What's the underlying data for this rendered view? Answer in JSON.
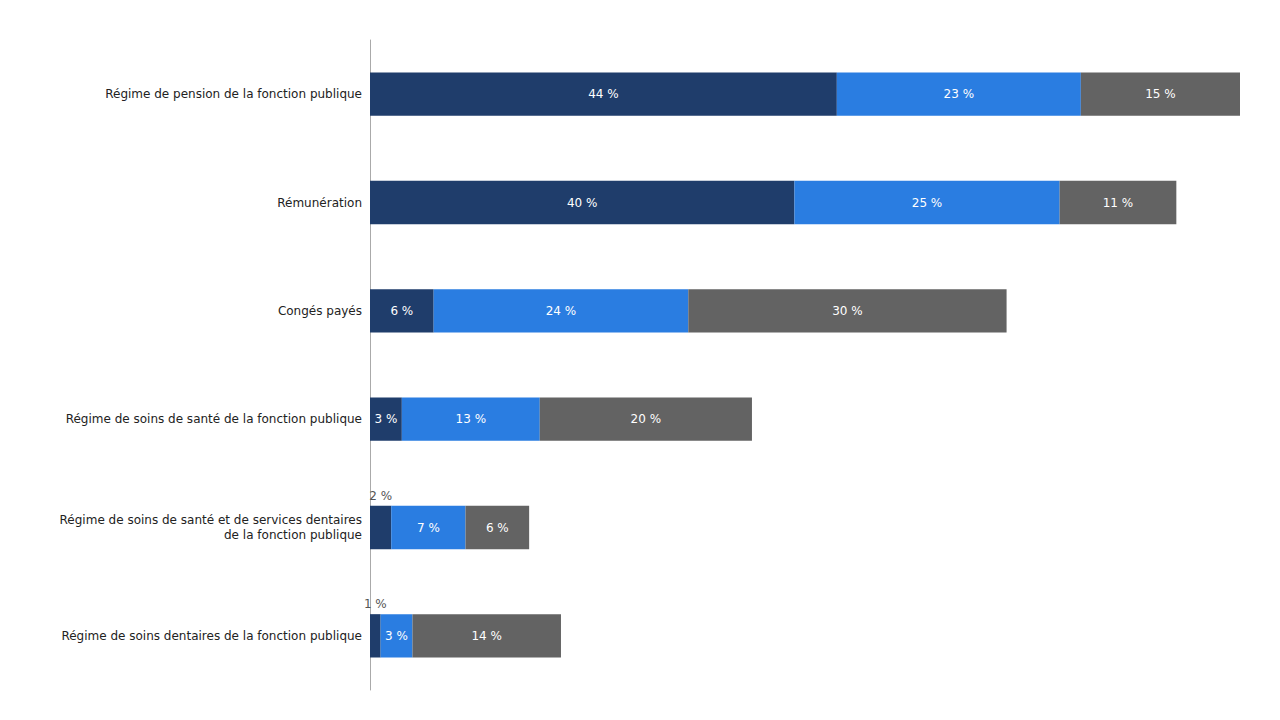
{
  "chart_data": {
    "type": "bar",
    "orientation": "horizontal",
    "stacked": true,
    "categories": [
      "Régime de pension de la fonction publique",
      "Rémunération",
      "Congés payés",
      "Régime de soins de santé de la fonction publique",
      "Régime de soins de santé et de services dentaires\nde la fonction publique",
      "Régime de soins dentaires de la fonction publique"
    ],
    "series": [
      {
        "color": "#1f3d6b",
        "values": [
          44,
          40,
          6,
          3,
          2,
          1
        ],
        "value_labels": [
          "44 %",
          "40 %",
          "6 %",
          "3 %",
          "2 %",
          "1 %"
        ]
      },
      {
        "color": "#2a7de1",
        "values": [
          23,
          25,
          24,
          13,
          7,
          3
        ],
        "value_labels": [
          "23 %",
          "25 %",
          "24 %",
          "13 %",
          "7 %",
          "3 %"
        ]
      },
      {
        "color": "#636363",
        "values": [
          15,
          11,
          30,
          20,
          6,
          14
        ],
        "value_labels": [
          "15 %",
          "11 %",
          "30 %",
          "20 %",
          "6 %",
          "14 %"
        ]
      }
    ],
    "xlim": [
      0,
      82
    ],
    "data_labels": true,
    "grid": false,
    "tick_labels": "y"
  }
}
